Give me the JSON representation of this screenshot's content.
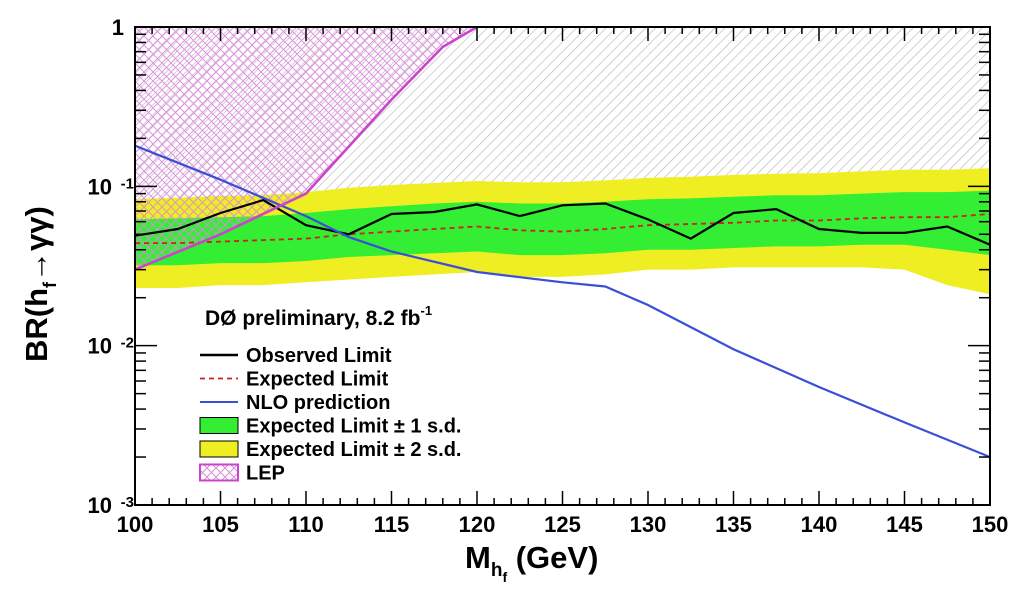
{
  "chart_data": {
    "type": "line",
    "title": "",
    "xlabel": {
      "main": "M",
      "sub": "h",
      "subsub": "f",
      "unit": " (GeV)"
    },
    "ylabel": {
      "main": "BR(h",
      "sub": "f",
      "tail": "→γγ)"
    },
    "xlim": [
      100,
      150
    ],
    "ylim": [
      0.001,
      1
    ],
    "y_scale": "log",
    "x_ticks": [
      100,
      105,
      110,
      115,
      120,
      125,
      130,
      135,
      140,
      145,
      150
    ],
    "y_ticks": [
      {
        "value": 0.001,
        "base": "10",
        "exp": "-3"
      },
      {
        "value": 0.01,
        "base": "10",
        "exp": "-2"
      },
      {
        "value": 0.1,
        "base": "10",
        "exp": "-1"
      },
      {
        "value": 1,
        "base": "1",
        "exp": ""
      }
    ],
    "annotation": {
      "text": "DØ preliminary, 8.2 fb",
      "sup": "-1"
    },
    "colors": {
      "observed": "#000000",
      "expected": "#cc2222",
      "nlo": "#3a4fd8",
      "one_sd": "#33ee33",
      "two_sd": "#eeee22",
      "lep": "#cc44cc",
      "excluded_hatch": "#b8b8b8"
    },
    "legend": {
      "placement": "lower-left",
      "entries": [
        {
          "key": "observed",
          "label": "Observed Limit"
        },
        {
          "key": "expected",
          "label": "Expected Limit"
        },
        {
          "key": "nlo",
          "label": "NLO prediction"
        },
        {
          "key": "one_sd",
          "label": "Expected Limit ± 1 s.d."
        },
        {
          "key": "two_sd",
          "label": "Expected Limit ± 2 s.d."
        },
        {
          "key": "lep",
          "label": "LEP"
        }
      ]
    },
    "x": [
      100,
      102.5,
      105,
      107.5,
      110,
      112.5,
      115,
      117.5,
      120,
      122.5,
      125,
      127.5,
      130,
      132.5,
      135,
      137.5,
      140,
      142.5,
      145,
      147.5,
      150
    ],
    "series": [
      {
        "name": "Observed Limit",
        "key": "observed",
        "values": [
          0.049,
          0.054,
          0.068,
          0.082,
          0.057,
          0.05,
          0.067,
          0.069,
          0.077,
          0.065,
          0.076,
          0.078,
          0.062,
          0.047,
          0.068,
          0.072,
          0.054,
          0.051,
          0.051,
          0.056,
          0.043
        ]
      },
      {
        "name": "Expected Limit",
        "key": "expected",
        "values": [
          0.044,
          0.044,
          0.045,
          0.046,
          0.047,
          0.05,
          0.052,
          0.054,
          0.056,
          0.053,
          0.052,
          0.054,
          0.057,
          0.058,
          0.059,
          0.061,
          0.061,
          0.063,
          0.064,
          0.064,
          0.067
        ]
      },
      {
        "name": "Expected Limit ± 1 s.d.",
        "key": "one_sd",
        "upper": [
          0.062,
          0.063,
          0.064,
          0.065,
          0.068,
          0.072,
          0.075,
          0.078,
          0.08,
          0.078,
          0.078,
          0.08,
          0.083,
          0.084,
          0.086,
          0.088,
          0.088,
          0.09,
          0.092,
          0.092,
          0.094
        ],
        "lower": [
          0.032,
          0.032,
          0.033,
          0.033,
          0.034,
          0.036,
          0.037,
          0.038,
          0.039,
          0.037,
          0.037,
          0.038,
          0.04,
          0.04,
          0.041,
          0.042,
          0.042,
          0.043,
          0.043,
          0.04,
          0.037
        ]
      },
      {
        "name": "Expected Limit ± 2 s.d.",
        "key": "two_sd",
        "upper": [
          0.083,
          0.085,
          0.087,
          0.088,
          0.092,
          0.098,
          0.102,
          0.105,
          0.108,
          0.106,
          0.106,
          0.109,
          0.113,
          0.115,
          0.118,
          0.12,
          0.121,
          0.124,
          0.127,
          0.127,
          0.13
        ],
        "lower": [
          0.023,
          0.023,
          0.024,
          0.024,
          0.025,
          0.026,
          0.027,
          0.028,
          0.029,
          0.027,
          0.027,
          0.028,
          0.03,
          0.03,
          0.031,
          0.031,
          0.031,
          0.031,
          0.03,
          0.024,
          0.021
        ]
      },
      {
        "name": "NLO prediction",
        "key": "nlo",
        "x": [
          100,
          105,
          110,
          112.5,
          115,
          120,
          125,
          127.5,
          130,
          135,
          140,
          145,
          150
        ],
        "values": [
          0.18,
          0.11,
          0.065,
          0.048,
          0.039,
          0.029,
          0.025,
          0.0235,
          0.018,
          0.0095,
          0.0055,
          0.0033,
          0.002
        ]
      },
      {
        "name": "LEP",
        "key": "lep",
        "x": [
          100,
          105,
          110,
          115,
          118,
          120
        ],
        "values": [
          0.03,
          0.05,
          0.09,
          0.35,
          0.75,
          1.0
        ]
      }
    ]
  }
}
